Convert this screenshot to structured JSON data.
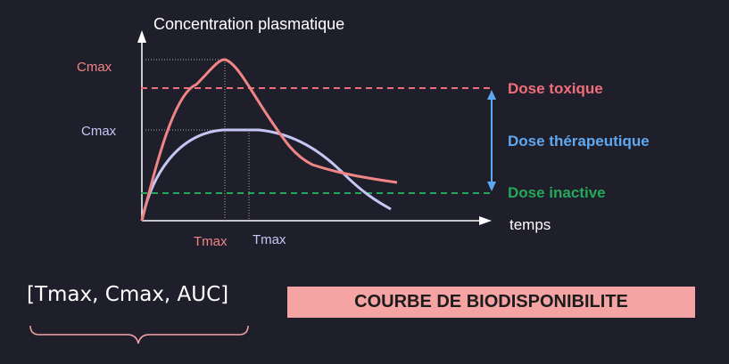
{
  "diagram": {
    "y_axis_label": "Concentration plasmatique",
    "x_axis_label": "temps",
    "cmax_red_label": "Cmax",
    "cmax_blue_label": "Cmax",
    "tmax_red_label": "Tmax",
    "tmax_blue_label": "Tmax",
    "dose_toxique": "Dose toxique",
    "dose_therapeutique": "Dose thérapeutique",
    "dose_inactive": "Dose inactive"
  },
  "parameters_text": "[Tmax, Cmax, AUC]",
  "title": "COURBE DE BIODISPONIBILITE",
  "colors": {
    "background": "#1f1f2b",
    "red_curve": "#f08585",
    "blue_curve": "#c6c6f5",
    "toxic": "#f06e7a",
    "therapeutic": "#5fa8ef",
    "inactive": "#23a85a",
    "title_bg": "#f5a3a3",
    "axis": "#ffffff"
  }
}
